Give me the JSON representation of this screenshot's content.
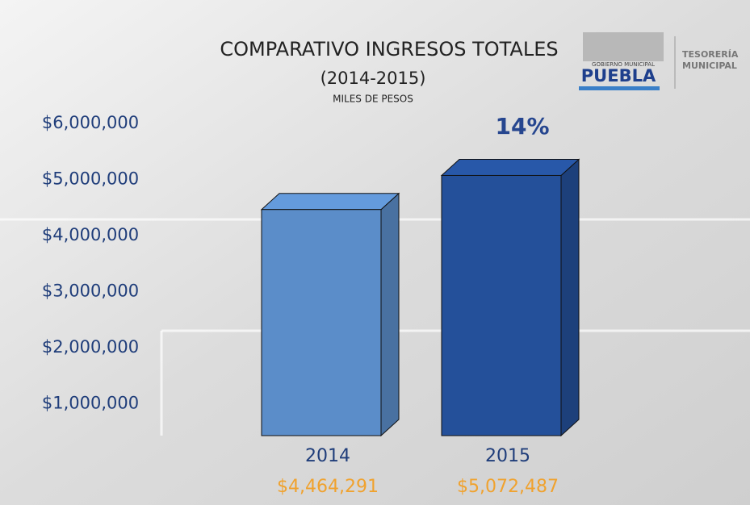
{
  "chart_data": {
    "type": "bar3d",
    "title": "COMPARATIVO INGRESOS TOTALES",
    "subtitle": "(2014-2015)",
    "unit_note": "MILES DE PESOS",
    "categories": [
      "2014",
      "2015"
    ],
    "values": [
      4464291,
      5072487
    ],
    "value_labels": [
      "$4,464,291",
      "$5,072,487"
    ],
    "colors": [
      "#5b8dc9",
      "#24509a"
    ],
    "annotation": "14%",
    "ylim": [
      0,
      6000000
    ],
    "yticks": [
      {
        "value": 1000000,
        "label": "$1,000,000"
      },
      {
        "value": 2000000,
        "label": "$2,000,000"
      },
      {
        "value": 3000000,
        "label": "$3,000,000"
      },
      {
        "value": 4000000,
        "label": "$4,000,000"
      },
      {
        "value": 5000000,
        "label": "$5,000,000"
      },
      {
        "value": 6000000,
        "label": "$6,000,000"
      }
    ]
  },
  "logo": {
    "caption": "GOBIERNO MUNICIPAL",
    "name": "PUEBLA",
    "dept_line1": "TESORERÍA",
    "dept_line2": "MUNICIPAL"
  }
}
